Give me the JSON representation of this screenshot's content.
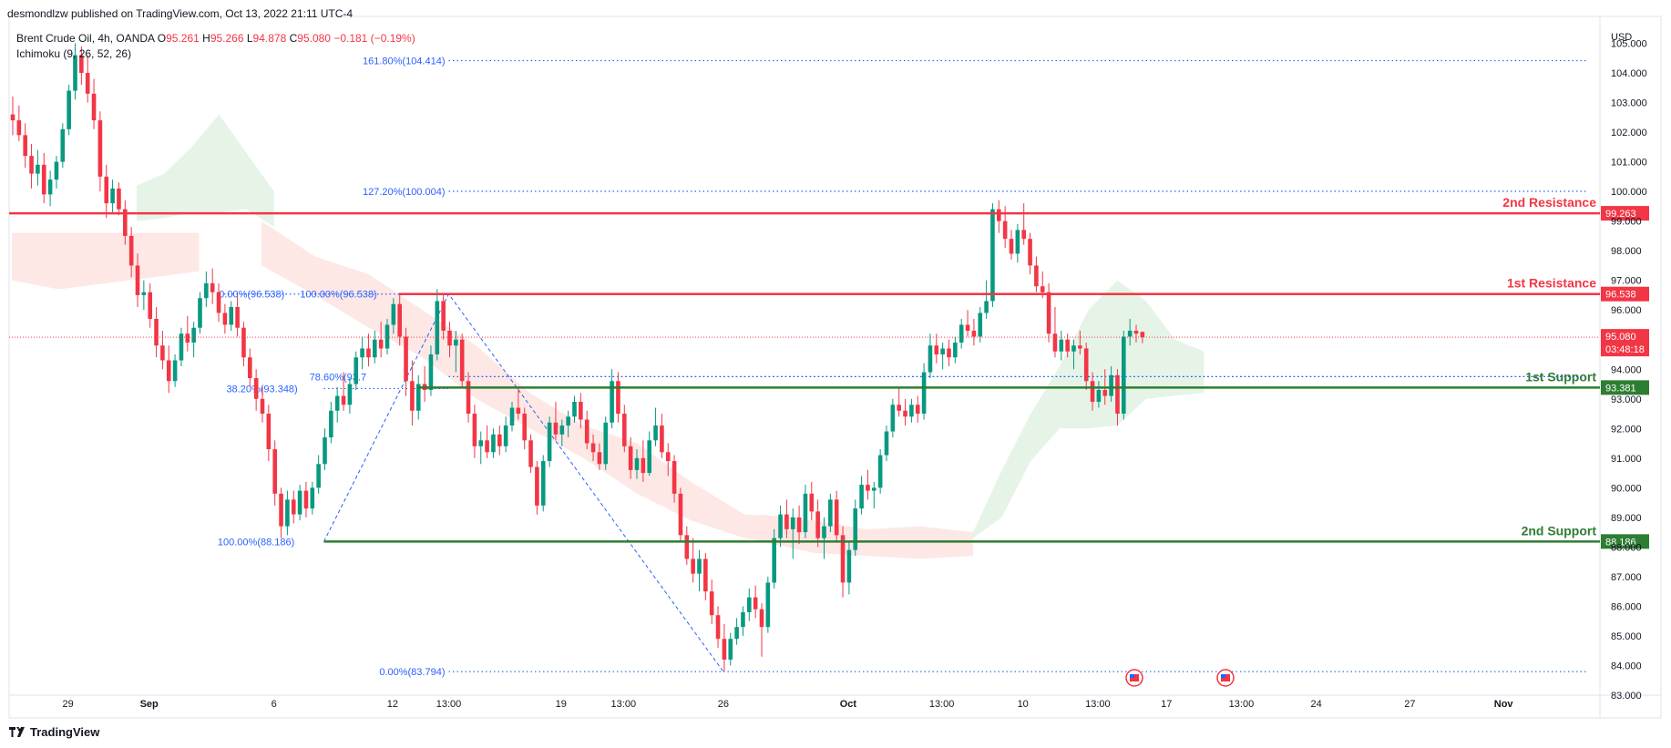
{
  "header": {
    "published_by": "desmondlzw published on TradingView.com, Oct 13, 2022 21:11 UTC-4"
  },
  "legend": {
    "symbol": "Brent Crude Oil, 4h, OANDA",
    "o_label": "O",
    "o_value": "95.261",
    "h_label": "H",
    "h_value": "95.266",
    "l_label": "L",
    "l_value": "94.878",
    "c_label": "C",
    "c_value": "95.080",
    "change": "−0.181 (−0.19%)",
    "indicator": "Ichimoku (9, 26, 52, 26)"
  },
  "footer": {
    "brand": "TradingView"
  },
  "colors": {
    "bull": "#089981",
    "bear": "#f23645",
    "resistance": "#f23645",
    "support": "#2e7d32",
    "fib": "#2962ff",
    "cloud_bull": "#e3f3e6",
    "cloud_bear": "#fde5e3"
  },
  "chart_data": {
    "type": "candlestick",
    "title": "",
    "ylabel": "USD",
    "ylim": [
      83.0,
      105.6
    ],
    "y_ticks": [
      83.0,
      84.0,
      85.0,
      86.0,
      87.0,
      88.0,
      89.0,
      90.0,
      91.0,
      92.0,
      93.0,
      94.0,
      95.0,
      96.0,
      97.0,
      98.0,
      99.0,
      100.0,
      101.0,
      102.0,
      103.0,
      104.0,
      105.0
    ],
    "y_tick_labels": [
      "83.000",
      "84.000",
      "85.000",
      "86.000",
      "87.000",
      "88.000",
      "89.000",
      "90.000",
      "91.000",
      "92.000",
      "93.000",
      "94.000",
      "95.000",
      "96.000",
      "97.000",
      "98.000",
      "99.000",
      "100.000",
      "101.000",
      "102.000",
      "103.000",
      "104.000",
      "105.000"
    ],
    "x_ticks": [
      {
        "label": "29",
        "bar": 9
      },
      {
        "label": "Sep",
        "bar": 22
      },
      {
        "label": "6",
        "bar": 42
      },
      {
        "label": "12",
        "bar": 61
      },
      {
        "label": "13:00",
        "bar": 70
      },
      {
        "label": "19",
        "bar": 88
      },
      {
        "label": "13:00",
        "bar": 98
      },
      {
        "label": "26",
        "bar": 114
      },
      {
        "label": "Oct",
        "bar": 134
      },
      {
        "label": "13:00",
        "bar": 149
      },
      {
        "label": "10",
        "bar": 162
      },
      {
        "label": "13:00",
        "bar": 174
      },
      {
        "label": "17",
        "bar": 185
      },
      {
        "label": "13:00",
        "bar": 197
      },
      {
        "label": "24",
        "bar": 209
      },
      {
        "label": "27",
        "bar": 224
      },
      {
        "label": "Nov",
        "bar": 239
      }
    ],
    "bar_count_span": 259,
    "candles": [
      [
        102.6,
        103.2,
        101.9,
        102.4
      ],
      [
        102.4,
        102.9,
        101.7,
        101.9
      ],
      [
        101.9,
        102.3,
        100.8,
        101.2
      ],
      [
        101.2,
        101.6,
        100.1,
        100.6
      ],
      [
        100.6,
        101.4,
        100.2,
        100.9
      ],
      [
        100.9,
        101.3,
        99.6,
        99.9
      ],
      [
        99.9,
        100.7,
        99.5,
        100.4
      ],
      [
        100.4,
        101.2,
        100.1,
        101.0
      ],
      [
        101.0,
        102.3,
        100.8,
        102.1
      ],
      [
        102.1,
        103.6,
        101.9,
        103.4
      ],
      [
        103.4,
        105.0,
        103.1,
        104.6
      ],
      [
        104.6,
        104.9,
        103.6,
        104.0
      ],
      [
        104.0,
        104.6,
        103.0,
        103.3
      ],
      [
        103.3,
        103.8,
        102.1,
        102.4
      ],
      [
        102.4,
        102.7,
        100.0,
        100.5
      ],
      [
        100.5,
        100.9,
        99.1,
        99.6
      ],
      [
        99.6,
        100.4,
        99.3,
        100.1
      ],
      [
        100.1,
        100.3,
        99.2,
        99.4
      ],
      [
        99.4,
        99.7,
        98.2,
        98.5
      ],
      [
        98.5,
        98.8,
        97.1,
        97.5
      ],
      [
        97.5,
        97.9,
        96.1,
        96.5
      ],
      [
        96.5,
        97.0,
        96.0,
        96.6
      ],
      [
        96.6,
        96.9,
        95.4,
        95.7
      ],
      [
        95.7,
        96.1,
        94.4,
        94.8
      ],
      [
        94.8,
        95.3,
        94.0,
        94.3
      ],
      [
        94.3,
        94.8,
        93.2,
        93.6
      ],
      [
        93.6,
        94.5,
        93.4,
        94.3
      ],
      [
        94.3,
        95.4,
        94.1,
        95.2
      ],
      [
        95.2,
        95.8,
        94.6,
        94.9
      ],
      [
        94.9,
        95.6,
        94.4,
        95.4
      ],
      [
        95.4,
        96.6,
        95.2,
        96.4
      ],
      [
        96.4,
        97.3,
        96.1,
        96.9
      ],
      [
        96.9,
        97.4,
        96.2,
        96.6
      ],
      [
        96.6,
        96.9,
        95.6,
        95.9
      ],
      [
        95.9,
        96.2,
        95.2,
        95.5
      ],
      [
        95.5,
        96.3,
        95.3,
        96.1
      ],
      [
        96.1,
        96.5,
        95.1,
        95.4
      ],
      [
        95.4,
        95.6,
        94.1,
        94.4
      ],
      [
        94.4,
        94.7,
        93.4,
        93.7
      ],
      [
        93.7,
        94.0,
        92.6,
        93.0
      ],
      [
        93.0,
        93.4,
        92.2,
        92.5
      ],
      [
        92.5,
        92.8,
        90.9,
        91.3
      ],
      [
        91.3,
        91.6,
        89.4,
        89.8
      ],
      [
        89.8,
        90.0,
        88.3,
        88.7
      ],
      [
        88.7,
        89.9,
        88.4,
        89.6
      ],
      [
        89.6,
        89.9,
        88.8,
        89.1
      ],
      [
        89.1,
        90.1,
        88.9,
        89.9
      ],
      [
        89.9,
        90.2,
        89.0,
        89.3
      ],
      [
        89.3,
        90.2,
        89.1,
        90.0
      ],
      [
        90.0,
        91.1,
        89.8,
        90.8
      ],
      [
        90.8,
        92.0,
        90.6,
        91.7
      ],
      [
        91.7,
        92.9,
        91.5,
        92.6
      ],
      [
        92.6,
        93.4,
        92.2,
        93.1
      ],
      [
        93.1,
        93.9,
        92.6,
        92.8
      ],
      [
        92.8,
        93.7,
        92.5,
        93.5
      ],
      [
        93.5,
        94.6,
        93.3,
        94.4
      ],
      [
        94.4,
        95.1,
        94.0,
        94.7
      ],
      [
        94.7,
        95.2,
        94.1,
        94.4
      ],
      [
        94.4,
        95.3,
        94.2,
        95.0
      ],
      [
        95.0,
        95.6,
        94.4,
        94.7
      ],
      [
        94.7,
        95.7,
        94.5,
        95.5
      ],
      [
        95.5,
        96.4,
        95.2,
        96.2
      ],
      [
        96.2,
        96.5,
        94.8,
        95.1
      ],
      [
        95.1,
        95.4,
        93.1,
        93.6
      ],
      [
        93.6,
        94.3,
        92.1,
        92.6
      ],
      [
        92.6,
        93.8,
        92.3,
        93.5
      ],
      [
        93.5,
        94.1,
        92.9,
        93.3
      ],
      [
        93.3,
        94.8,
        93.1,
        94.5
      ],
      [
        94.5,
        96.7,
        94.3,
        96.3
      ],
      [
        96.3,
        96.5,
        95.0,
        95.3
      ],
      [
        95.3,
        95.6,
        94.4,
        94.8
      ],
      [
        94.8,
        95.3,
        93.9,
        95.0
      ],
      [
        95.0,
        95.2,
        93.4,
        93.6
      ],
      [
        93.6,
        93.9,
        92.2,
        92.5
      ],
      [
        92.5,
        92.8,
        91.0,
        91.4
      ],
      [
        91.4,
        91.9,
        90.8,
        91.6
      ],
      [
        91.6,
        92.1,
        91.0,
        91.2
      ],
      [
        91.2,
        92.0,
        91.0,
        91.8
      ],
      [
        91.8,
        92.1,
        91.1,
        91.4
      ],
      [
        91.4,
        92.4,
        91.2,
        92.1
      ],
      [
        92.1,
        92.9,
        91.9,
        92.7
      ],
      [
        92.7,
        93.4,
        92.3,
        92.5
      ],
      [
        92.5,
        92.7,
        91.3,
        91.6
      ],
      [
        91.6,
        91.8,
        90.5,
        90.7
      ],
      [
        90.7,
        90.9,
        89.1,
        89.4
      ],
      [
        89.4,
        91.1,
        89.2,
        90.9
      ],
      [
        90.9,
        92.4,
        90.7,
        92.2
      ],
      [
        92.2,
        92.9,
        91.6,
        91.8
      ],
      [
        91.8,
        92.3,
        91.4,
        92.1
      ],
      [
        92.1,
        92.6,
        91.7,
        92.4
      ],
      [
        92.4,
        93.1,
        92.2,
        92.9
      ],
      [
        92.9,
        93.2,
        92.0,
        92.3
      ],
      [
        92.3,
        92.6,
        91.3,
        91.5
      ],
      [
        91.5,
        91.8,
        90.9,
        91.2
      ],
      [
        91.2,
        91.5,
        90.6,
        90.8
      ],
      [
        90.8,
        92.4,
        90.6,
        92.2
      ],
      [
        92.2,
        94.0,
        92.0,
        93.6
      ],
      [
        93.6,
        93.9,
        92.2,
        92.5
      ],
      [
        92.5,
        92.8,
        91.2,
        91.4
      ],
      [
        91.4,
        91.7,
        90.3,
        90.6
      ],
      [
        90.6,
        91.3,
        90.3,
        91.0
      ],
      [
        91.0,
        91.6,
        90.2,
        90.5
      ],
      [
        90.5,
        91.9,
        90.4,
        91.6
      ],
      [
        91.6,
        92.7,
        91.4,
        92.1
      ],
      [
        92.1,
        92.5,
        91.0,
        91.2
      ],
      [
        91.2,
        91.5,
        90.4,
        90.9
      ],
      [
        90.9,
        91.1,
        89.5,
        89.8
      ],
      [
        89.8,
        90.0,
        88.2,
        88.4
      ],
      [
        88.4,
        88.7,
        87.4,
        87.6
      ],
      [
        87.6,
        88.3,
        86.8,
        87.1
      ],
      [
        87.1,
        87.9,
        86.5,
        87.6
      ],
      [
        87.6,
        87.8,
        86.2,
        86.5
      ],
      [
        86.5,
        86.9,
        85.4,
        85.7
      ],
      [
        85.7,
        86.0,
        84.6,
        84.9
      ],
      [
        84.9,
        85.4,
        83.8,
        84.2
      ],
      [
        84.2,
        85.1,
        84.0,
        84.9
      ],
      [
        84.9,
        85.6,
        84.7,
        85.3
      ],
      [
        85.3,
        86.0,
        85.0,
        85.8
      ],
      [
        85.8,
        86.6,
        85.5,
        86.3
      ],
      [
        86.3,
        86.7,
        85.6,
        85.9
      ],
      [
        85.9,
        86.1,
        84.3,
        85.3
      ],
      [
        85.3,
        87.0,
        85.1,
        86.8
      ],
      [
        86.8,
        88.6,
        86.6,
        88.3
      ],
      [
        88.3,
        89.4,
        88.0,
        89.1
      ],
      [
        89.1,
        89.6,
        88.3,
        88.6
      ],
      [
        88.6,
        89.3,
        87.6,
        89.0
      ],
      [
        89.0,
        89.4,
        88.1,
        88.5
      ],
      [
        88.5,
        90.1,
        88.3,
        89.8
      ],
      [
        89.8,
        90.2,
        88.9,
        89.2
      ],
      [
        89.2,
        89.6,
        88.0,
        88.3
      ],
      [
        88.3,
        89.0,
        87.6,
        88.7
      ],
      [
        88.7,
        89.8,
        88.5,
        89.6
      ],
      [
        89.6,
        89.9,
        88.2,
        88.4
      ],
      [
        88.4,
        88.7,
        86.3,
        86.8
      ],
      [
        86.8,
        88.2,
        86.4,
        87.9
      ],
      [
        87.9,
        89.6,
        87.7,
        89.3
      ],
      [
        89.3,
        90.4,
        89.1,
        90.1
      ],
      [
        90.1,
        90.6,
        89.6,
        89.9
      ],
      [
        89.9,
        90.2,
        89.3,
        90.0
      ],
      [
        90.0,
        91.3,
        89.8,
        91.1
      ],
      [
        91.1,
        92.1,
        90.9,
        91.9
      ],
      [
        91.9,
        93.0,
        91.7,
        92.8
      ],
      [
        92.8,
        93.4,
        92.4,
        92.6
      ],
      [
        92.6,
        93.0,
        92.1,
        92.4
      ],
      [
        92.4,
        93.0,
        92.2,
        92.8
      ],
      [
        92.8,
        93.1,
        92.2,
        92.5
      ],
      [
        92.5,
        94.2,
        92.3,
        93.9
      ],
      [
        93.9,
        95.2,
        93.7,
        94.8
      ],
      [
        94.8,
        95.2,
        94.2,
        94.5
      ],
      [
        94.5,
        94.9,
        94.0,
        94.7
      ],
      [
        94.7,
        95.0,
        94.1,
        94.4
      ],
      [
        94.4,
        95.1,
        94.2,
        94.9
      ],
      [
        94.9,
        95.7,
        94.7,
        95.5
      ],
      [
        95.5,
        96.0,
        95.1,
        95.3
      ],
      [
        95.3,
        95.7,
        94.8,
        95.1
      ],
      [
        95.1,
        96.1,
        94.9,
        95.9
      ],
      [
        95.9,
        97.0,
        95.7,
        96.3
      ],
      [
        96.3,
        99.6,
        96.1,
        99.4
      ],
      [
        99.4,
        99.7,
        98.6,
        99.0
      ],
      [
        99.0,
        99.5,
        98.1,
        98.4
      ],
      [
        98.4,
        98.7,
        97.7,
        97.9
      ],
      [
        97.9,
        98.9,
        97.6,
        98.7
      ],
      [
        98.7,
        99.6,
        98.2,
        98.4
      ],
      [
        98.4,
        98.6,
        97.2,
        97.5
      ],
      [
        97.5,
        97.8,
        96.6,
        96.8
      ],
      [
        96.8,
        97.3,
        96.4,
        96.6
      ],
      [
        96.6,
        96.9,
        94.9,
        95.2
      ],
      [
        95.2,
        96.1,
        94.4,
        94.6
      ],
      [
        94.6,
        95.3,
        94.3,
        95.0
      ],
      [
        95.0,
        95.2,
        94.4,
        94.6
      ],
      [
        94.6,
        95.0,
        94.0,
        94.8
      ],
      [
        94.8,
        95.3,
        94.5,
        94.7
      ],
      [
        94.7,
        94.9,
        93.3,
        93.6
      ],
      [
        93.6,
        93.9,
        92.6,
        92.9
      ],
      [
        92.9,
        93.6,
        92.7,
        93.3
      ],
      [
        93.3,
        94.0,
        92.8,
        93.1
      ],
      [
        93.1,
        94.1,
        92.9,
        93.8
      ],
      [
        93.8,
        94.0,
        92.1,
        92.5
      ],
      [
        92.5,
        95.3,
        92.3,
        95.1
      ],
      [
        95.1,
        95.7,
        94.8,
        95.3
      ],
      [
        95.3,
        95.5,
        94.9,
        95.2
      ],
      [
        95.261,
        95.266,
        94.878,
        95.08
      ]
    ],
    "levels": [
      {
        "name": "2nd Resistance",
        "value": 99.263,
        "value_label": "99.263",
        "kind": "resistance"
      },
      {
        "name": "1st Resistance",
        "value": 96.538,
        "value_label": "96.538",
        "kind": "resistance"
      },
      {
        "name": "1st Support",
        "value": 93.381,
        "value_label": "93.381",
        "kind": "support"
      },
      {
        "name": "2nd Support",
        "value": 88.186,
        "value_label": "88.186",
        "kind": "support"
      }
    ],
    "current_price": {
      "value": 95.08,
      "label": "95.080",
      "countdown": "03:48:18"
    },
    "fib_up": [
      {
        "label": "161.80%(104.414)",
        "value": 104.414
      },
      {
        "label": "127.20%(100.004)",
        "value": 100.004
      },
      {
        "label": "100.00%(96.538)",
        "value": 96.538
      },
      {
        "label": "38.20%(93.348)",
        "value": 93.348
      },
      {
        "label": "100.00%(88.186)",
        "value": 88.186
      }
    ],
    "fib_down": [
      {
        "label": "0.00%(96.538)",
        "value": 96.538
      },
      {
        "label": "78.60%(93.7",
        "value": 93.75
      },
      {
        "label": "0.00%(83.794)",
        "value": 83.794
      }
    ],
    "fib_anchor_bars": [
      50,
      70,
      114
    ],
    "ichimoku_cloud": [
      {
        "from_bar": 20,
        "to_bar": 42,
        "top": [
          100.2,
          100.6,
          101.5,
          102.6,
          101.3,
          100.0
        ],
        "bottom": [
          99.0,
          99.1,
          99.3,
          99.3,
          99.4,
          98.8
        ],
        "kind": "bull"
      },
      {
        "from_bar": 0,
        "to_bar": 30,
        "top": [
          98.6,
          98.6,
          98.6,
          98.6,
          98.6
        ],
        "bottom": [
          97.0,
          96.7,
          96.9,
          97.1,
          97.3
        ],
        "kind": "bear"
      },
      {
        "from_bar": 40,
        "to_bar": 126,
        "top": [
          99.0,
          97.8,
          97.2,
          96.0,
          94.8,
          93.2,
          92.1,
          91.5,
          90.2,
          89.1,
          89.0
        ],
        "bottom": [
          97.5,
          96.5,
          95.4,
          94.4,
          93.0,
          92.0,
          91.0,
          89.8,
          88.9,
          88.3,
          88.0
        ],
        "kind": "bear"
      },
      {
        "from_bar": 120,
        "to_bar": 154,
        "top": [
          89.1,
          88.9,
          88.6,
          88.7,
          88.5
        ],
        "bottom": [
          88.2,
          87.8,
          87.7,
          87.6,
          87.7
        ],
        "kind": "bear"
      },
      {
        "from_bar": 154,
        "to_bar": 191,
        "top": [
          88.5,
          90.6,
          92.5,
          94.1,
          96.0,
          97.0,
          96.3,
          95.0,
          94.6
        ],
        "bottom": [
          88.3,
          89.0,
          90.9,
          92.0,
          92.0,
          92.1,
          93.0,
          93.1,
          93.2
        ],
        "kind": "bull"
      }
    ]
  }
}
